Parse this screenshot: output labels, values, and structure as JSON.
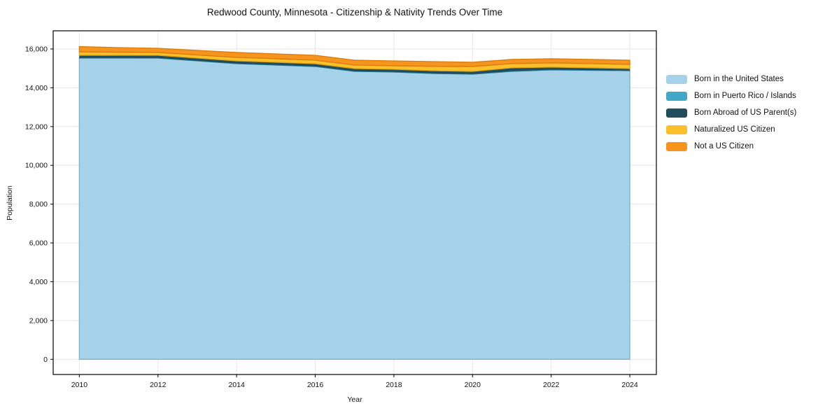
{
  "title": "Redwood County, Minnesota - Citizenship & Nativity Trends Over Time",
  "axes": {
    "xlabel": "Year",
    "ylabel": "Population"
  },
  "chart_data": {
    "type": "area",
    "stacked": true,
    "title": "Redwood County, Minnesota - Citizenship & Nativity Trends Over Time",
    "xlabel": "Year",
    "ylabel": "Population",
    "x": [
      2010,
      2011,
      2012,
      2013,
      2014,
      2015,
      2016,
      2017,
      2018,
      2019,
      2020,
      2021,
      2022,
      2023,
      2024
    ],
    "series": [
      {
        "name": "Born in the United States",
        "color": "#A5D2E8",
        "edge_color": "#7FB4D0",
        "values": [
          15530,
          15530,
          15530,
          15385,
          15240,
          15170,
          15095,
          14845,
          14810,
          14735,
          14700,
          14845,
          14920,
          14900,
          14880
        ]
      },
      {
        "name": "Born in Puerto Rico / Islands",
        "color": "#41A9C7",
        "edge_color": "#2F8BA6",
        "values": [
          15,
          12,
          10,
          10,
          12,
          10,
          10,
          10,
          10,
          8,
          8,
          20,
          15,
          12,
          10
        ]
      },
      {
        "name": "Born Abroad of US Parent(s)",
        "color": "#214D5E",
        "edge_color": "#16384533",
        "values": [
          130,
          133,
          135,
          135,
          133,
          135,
          135,
          135,
          135,
          137,
          137,
          165,
          130,
          118,
          100
        ]
      },
      {
        "name": "Naturalized US Citizen",
        "color": "#FCC02D",
        "edge_color": "#E0A513",
        "values": [
          180,
          160,
          145,
          160,
          180,
          180,
          180,
          180,
          180,
          220,
          250,
          215,
          215,
          215,
          215
        ]
      },
      {
        "name": "Not a US Citizen",
        "color": "#F7941E",
        "edge_color": "#D97B0D",
        "values": [
          270,
          235,
          215,
          235,
          255,
          250,
          255,
          250,
          250,
          250,
          220,
          215,
          215,
          215,
          215
        ]
      }
    ],
    "x_ticks": [
      2010,
      2012,
      2014,
      2016,
      2018,
      2020,
      2022,
      2024
    ],
    "x_tick_labels": [
      "2010",
      "2012",
      "2014",
      "2016",
      "2018",
      "2020",
      "2022",
      "2024"
    ],
    "y_ticks": [
      0,
      2000,
      4000,
      6000,
      8000,
      10000,
      12000,
      14000,
      16000
    ],
    "y_tick_labels": [
      "0",
      "2,000",
      "4,000",
      "6,000",
      "8,000",
      "10,000",
      "12,000",
      "14,000",
      "16,000"
    ],
    "xlim": [
      2009.335,
      2024.675
    ],
    "ylim": [
      -783,
      16937
    ],
    "grid": true,
    "grid_color": "#E7E7E7",
    "frame_color": "#000000",
    "text_color": "#111111",
    "legend_position": "right of plot, no frame"
  }
}
